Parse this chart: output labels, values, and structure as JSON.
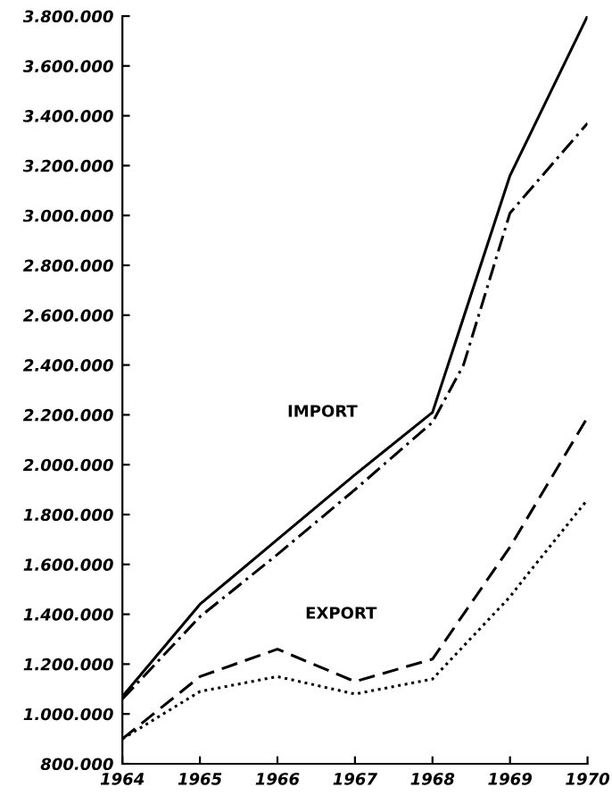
{
  "chart_data": {
    "type": "line",
    "x": [
      1964,
      1965,
      1966,
      1967,
      1968,
      1969,
      1970
    ],
    "series": [
      {
        "color": "#000000",
        "line_style": "solid",
        "values": [
          1070000,
          1440000,
          1700000,
          1960000,
          2210000,
          3160000,
          3800000
        ]
      },
      {
        "color": "#000000",
        "line_style": "dashdot",
        "x": [
          1964,
          1965,
          1966,
          1967,
          1968,
          1968.4,
          1969,
          1970
        ],
        "values": [
          1060000,
          1390000,
          1640000,
          1900000,
          2170000,
          2400000,
          3010000,
          3370000
        ]
      },
      {
        "color": "#000000",
        "line_style": "dashed",
        "values": [
          900000,
          1150000,
          1260000,
          1130000,
          1220000,
          1670000,
          2190000
        ]
      },
      {
        "color": "#000000",
        "line_style": "dotted",
        "x": [
          1964,
          1965,
          1966,
          1967,
          1968,
          1969,
          1969.2,
          1970
        ],
        "values": [
          900000,
          1090000,
          1150000,
          1080000,
          1140000,
          1470000,
          1550000,
          1860000
        ]
      }
    ],
    "annotations": [
      "IMPORT",
      "EXPORT"
    ],
    "xlim": [
      1964,
      1970
    ],
    "xticks": [
      1964,
      1965,
      1966,
      1967,
      1968,
      1969,
      1970
    ],
    "ylim": [
      800000,
      3800000
    ],
    "yticks": [
      {
        "value": 800000,
        "label": "800.000"
      },
      {
        "value": 1000000,
        "label": "1.000.000"
      },
      {
        "value": 1200000,
        "label": "1.200.000"
      },
      {
        "value": 1400000,
        "label": "1.400.000"
      },
      {
        "value": 1600000,
        "label": "1.600.000"
      },
      {
        "value": 1800000,
        "label": "1.800.000"
      },
      {
        "value": 2000000,
        "label": "2.000.000"
      },
      {
        "value": 2200000,
        "label": "2.200.000"
      },
      {
        "value": 2400000,
        "label": "2.400.000"
      },
      {
        "value": 2600000,
        "label": "2.600.000"
      },
      {
        "value": 2800000,
        "label": "2.800.000"
      },
      {
        "value": 3000000,
        "label": "3.000.000"
      },
      {
        "value": 3200000,
        "label": "3.200.000"
      },
      {
        "value": 3400000,
        "label": "3.400.000"
      },
      {
        "value": 3600000,
        "label": "3.600.000"
      },
      {
        "value": 3800000,
        "label": "3.800.000"
      }
    ],
    "grid": false,
    "legend": false
  }
}
